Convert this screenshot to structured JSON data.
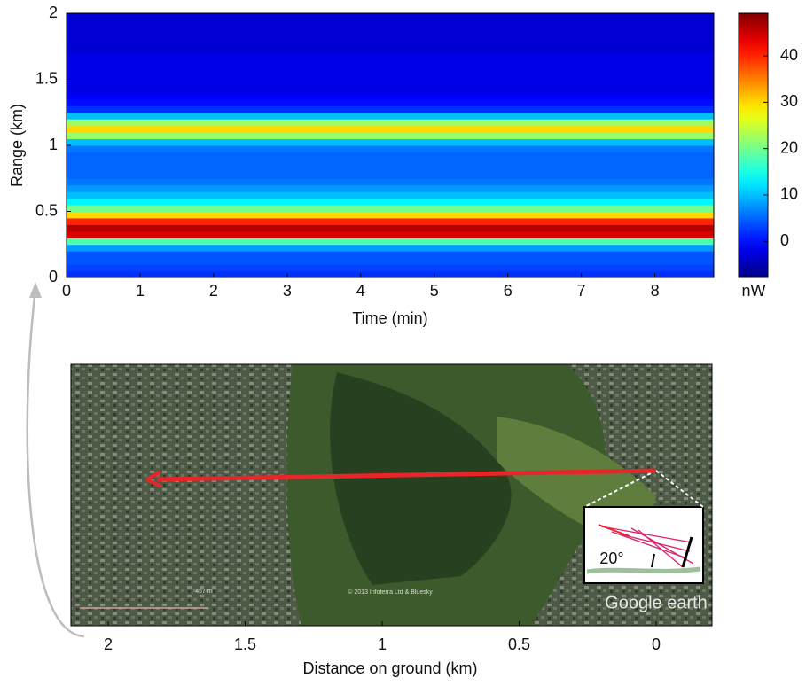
{
  "chart_data": [
    {
      "type": "heatmap",
      "xlabel": "Time (min)",
      "ylabel": "Range (km)",
      "xlim": [
        0,
        8.8
      ],
      "xticks": [
        0,
        1,
        2,
        3,
        4,
        5,
        6,
        7,
        8
      ],
      "ylim": [
        0,
        2
      ],
      "yticks": [
        0,
        0.5,
        1,
        1.5,
        2
      ],
      "y": [
        0,
        0.05,
        0.1,
        0.15,
        0.2,
        0.25,
        0.3,
        0.35,
        0.4,
        0.45,
        0.5,
        0.55,
        0.6,
        0.65,
        0.7,
        0.75,
        0.8,
        0.85,
        0.9,
        0.95,
        1,
        1.05,
        1.1,
        1.15,
        1.2,
        1.25,
        1.3,
        1.35,
        1.4,
        1.45,
        1.5,
        1.55,
        1.6,
        1.65,
        1.7,
        1.75,
        1.8,
        1.85,
        1.9,
        1.95
      ],
      "values": [
        2,
        3,
        4,
        4,
        8,
        18,
        44,
        46,
        40,
        30,
        20,
        13,
        10,
        8,
        6,
        5,
        5,
        5,
        5,
        6,
        10,
        22,
        30,
        22,
        10,
        2,
        0,
        -1,
        -2,
        -2,
        -2,
        -2,
        -2,
        -2,
        -3,
        -3,
        -3,
        -3,
        -3,
        -3
      ],
      "zlim": [
        -7.8,
        49.2
      ],
      "colorbar_ticks": [
        0,
        10,
        20,
        30,
        40
      ],
      "colorbar_label": "nW"
    },
    {
      "type": "image",
      "xlabel": "Distance on ground (km)",
      "xlim": [
        2.136,
        -0.204
      ],
      "xticks": [
        2,
        1.5,
        1,
        0.5,
        0
      ],
      "arrow": {
        "from": 0,
        "to": 1.86,
        "color": "#e8262a"
      },
      "annotations": [
        "20°",
        "Google earth",
        "© 2013 Infoterra Ltd & Bluesky",
        "457 m"
      ]
    }
  ]
}
